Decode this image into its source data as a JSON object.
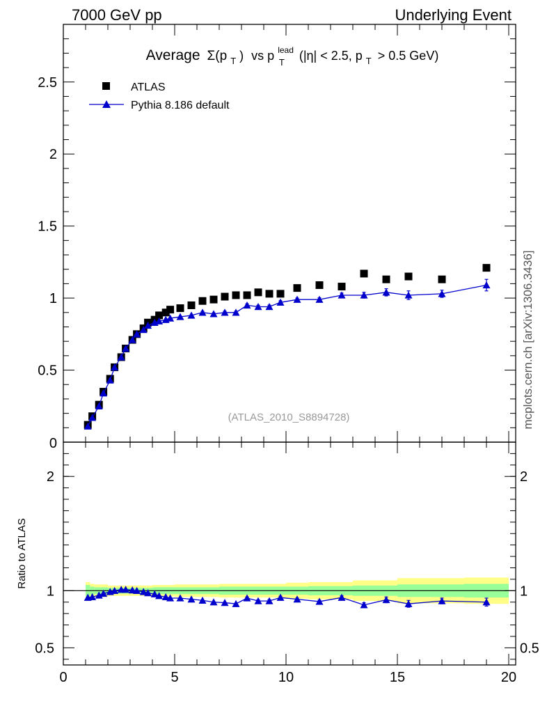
{
  "header": {
    "left": "7000 GeV pp",
    "right": "Underlying Event"
  },
  "side_label": "mcplots.cern.ch [arXiv:1306.3436]",
  "chart_data": [
    {
      "type": "scatter",
      "title": {
        "average": "Average",
        "sigma": "Σ(p",
        "sub_t1": "T",
        "close": ")",
        "vs": "vs p",
        "sup_lead": "lead",
        "sub_t2": "T",
        "cut1": "(|η| < 2.5, p",
        "sub_t3": "T",
        "cut2": "> 0.5 GeV)"
      },
      "watermark": "(ATLAS_2010_S8894728)",
      "xlim": [
        0,
        20
      ],
      "ylim": [
        0,
        2.9
      ],
      "y_ticks": [
        0.5,
        1,
        1.5,
        2,
        2.5
      ],
      "y_tick_labels": [
        "0.5",
        "1",
        "1.5",
        "2",
        "2.5"
      ],
      "y_zero_label": "0",
      "legend_position": "top-left",
      "series": [
        {
          "name": "ATLAS",
          "color": "#000000",
          "marker": "square",
          "points": [
            [
              1.1,
              0.12
            ],
            [
              1.3,
              0.18
            ],
            [
              1.6,
              0.26
            ],
            [
              1.8,
              0.35
            ],
            [
              2.1,
              0.44
            ],
            [
              2.3,
              0.52
            ],
            [
              2.6,
              0.59
            ],
            [
              2.8,
              0.65
            ],
            [
              3.1,
              0.71
            ],
            [
              3.3,
              0.75
            ],
            [
              3.6,
              0.79
            ],
            [
              3.8,
              0.83
            ],
            [
              4.1,
              0.85
            ],
            [
              4.3,
              0.88
            ],
            [
              4.6,
              0.9
            ],
            [
              4.8,
              0.92
            ],
            [
              5.25,
              0.93
            ],
            [
              5.75,
              0.95
            ],
            [
              6.25,
              0.98
            ],
            [
              6.75,
              0.99
            ],
            [
              7.25,
              1.01
            ],
            [
              7.75,
              1.02
            ],
            [
              8.25,
              1.02
            ],
            [
              8.75,
              1.04
            ],
            [
              9.25,
              1.03
            ],
            [
              9.75,
              1.03
            ],
            [
              10.5,
              1.07
            ],
            [
              11.5,
              1.09
            ],
            [
              12.5,
              1.08
            ],
            [
              13.5,
              1.17
            ],
            [
              14.5,
              1.13
            ],
            [
              15.5,
              1.15
            ],
            [
              17.0,
              1.13
            ],
            [
              19.0,
              1.21
            ]
          ]
        },
        {
          "name": "Pythia 8.186 default",
          "color": "#0000cc",
          "marker": "triangle",
          "points": [
            [
              1.1,
              0.11
            ],
            [
              1.3,
              0.17
            ],
            [
              1.6,
              0.25
            ],
            [
              1.8,
              0.34
            ],
            [
              2.1,
              0.43
            ],
            [
              2.3,
              0.52
            ],
            [
              2.6,
              0.59
            ],
            [
              2.8,
              0.65
            ],
            [
              3.1,
              0.71
            ],
            [
              3.3,
              0.75
            ],
            [
              3.6,
              0.78
            ],
            [
              3.8,
              0.81
            ],
            [
              4.1,
              0.83
            ],
            [
              4.3,
              0.84
            ],
            [
              4.6,
              0.85
            ],
            [
              4.8,
              0.86
            ],
            [
              5.25,
              0.87
            ],
            [
              5.75,
              0.88
            ],
            [
              6.25,
              0.9
            ],
            [
              6.75,
              0.89
            ],
            [
              7.25,
              0.9
            ],
            [
              7.75,
              0.9
            ],
            [
              8.25,
              0.95
            ],
            [
              8.75,
              0.94
            ],
            [
              9.25,
              0.94
            ],
            [
              9.75,
              0.97
            ],
            [
              10.5,
              0.99
            ],
            [
              11.5,
              0.99
            ],
            [
              12.5,
              1.02
            ],
            [
              13.5,
              1.02
            ],
            [
              14.5,
              1.04
            ],
            [
              15.5,
              1.02
            ],
            [
              17.0,
              1.03
            ],
            [
              19.0,
              1.09
            ]
          ],
          "errors": [
            0.003,
            0.003,
            0.003,
            0.003,
            0.004,
            0.004,
            0.004,
            0.005,
            0.005,
            0.005,
            0.005,
            0.006,
            0.006,
            0.006,
            0.006,
            0.006,
            0.006,
            0.007,
            0.008,
            0.008,
            0.009,
            0.009,
            0.01,
            0.01,
            0.011,
            0.012,
            0.01,
            0.012,
            0.015,
            0.02,
            0.025,
            0.03,
            0.025,
            0.04
          ]
        }
      ]
    },
    {
      "type": "scatter",
      "ylabel": "Ratio to ATLAS",
      "xlim": [
        0,
        20
      ],
      "ylim": [
        0.35,
        2.3
      ],
      "x_ticks": [
        0,
        5,
        10,
        15,
        20
      ],
      "x_tick_labels": [
        "0",
        "5",
        "10",
        "15",
        "20"
      ],
      "y_ticks": [
        0.5,
        1,
        2
      ],
      "y_tick_labels": [
        "0.5",
        "1",
        "2"
      ],
      "reference_line": 1,
      "uncertainty_bands": {
        "colors": {
          "inner": "#99ff99",
          "outer": "#ffff88"
        },
        "x_edges": [
          1.0,
          1.2,
          1.4,
          2.0,
          3.0,
          4.0,
          5.0,
          7.0,
          10.0,
          11.0,
          13.0,
          15.0,
          18.0,
          20.0
        ],
        "inner": [
          0.05,
          0.035,
          0.03,
          0.025,
          0.025,
          0.03,
          0.03,
          0.035,
          0.035,
          0.04,
          0.045,
          0.055,
          0.06
        ],
        "outer": [
          0.075,
          0.06,
          0.055,
          0.045,
          0.045,
          0.05,
          0.055,
          0.06,
          0.07,
          0.075,
          0.09,
          0.11,
          0.115
        ]
      },
      "series": [
        {
          "name": "Pythia 8.186 default",
          "color": "#0000cc",
          "marker": "triangle",
          "points": [
            [
              1.1,
              0.94
            ],
            [
              1.3,
              0.945
            ],
            [
              1.6,
              0.96
            ],
            [
              1.8,
              0.975
            ],
            [
              2.1,
              0.99
            ],
            [
              2.3,
              1.0
            ],
            [
              2.6,
              1.01
            ],
            [
              2.8,
              1.01
            ],
            [
              3.1,
              1.005
            ],
            [
              3.3,
              1.0
            ],
            [
              3.6,
              0.99
            ],
            [
              3.8,
              0.98
            ],
            [
              4.1,
              0.97
            ],
            [
              4.3,
              0.955
            ],
            [
              4.6,
              0.945
            ],
            [
              4.8,
              0.935
            ],
            [
              5.25,
              0.935
            ],
            [
              5.75,
              0.925
            ],
            [
              6.25,
              0.915
            ],
            [
              6.75,
              0.9
            ],
            [
              7.25,
              0.895
            ],
            [
              7.75,
              0.885
            ],
            [
              8.25,
              0.935
            ],
            [
              8.75,
              0.91
            ],
            [
              9.25,
              0.91
            ],
            [
              9.75,
              0.94
            ],
            [
              10.5,
              0.925
            ],
            [
              11.5,
              0.905
            ],
            [
              12.5,
              0.94
            ],
            [
              13.5,
              0.875
            ],
            [
              14.5,
              0.92
            ],
            [
              15.5,
              0.885
            ],
            [
              17.0,
              0.91
            ],
            [
              19.0,
              0.9
            ]
          ],
          "errors": [
            0.004,
            0.004,
            0.004,
            0.004,
            0.004,
            0.004,
            0.005,
            0.005,
            0.005,
            0.005,
            0.005,
            0.006,
            0.006,
            0.006,
            0.006,
            0.006,
            0.006,
            0.007,
            0.008,
            0.008,
            0.009,
            0.009,
            0.01,
            0.01,
            0.011,
            0.012,
            0.01,
            0.012,
            0.015,
            0.02,
            0.025,
            0.03,
            0.025,
            0.035
          ]
        }
      ]
    }
  ]
}
